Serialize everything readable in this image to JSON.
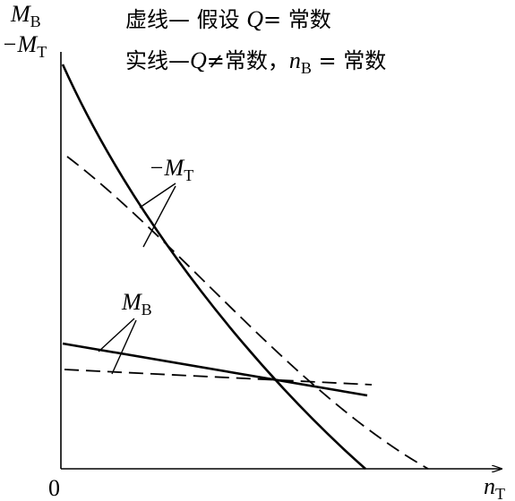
{
  "axes": {
    "y_label_1": {
      "main": "M",
      "sub": "B"
    },
    "y_label_2": {
      "main": "−M",
      "sub": "T"
    },
    "x_label": {
      "main": "n",
      "sub": "T"
    },
    "origin": "0"
  },
  "legend": {
    "dashed": {
      "before": "虚线— 假设 ",
      "symbol": "Q",
      "after": "= 常数"
    },
    "solid": {
      "before": "实线—",
      "symbol": "Q",
      "middle": "≠常数，",
      "symbol2": "n",
      "sub2": "B",
      "after": " = 常数"
    }
  },
  "annotations": [
    {
      "main": "−M",
      "sub": "T"
    },
    {
      "main": "M",
      "sub": "B"
    }
  ]
}
